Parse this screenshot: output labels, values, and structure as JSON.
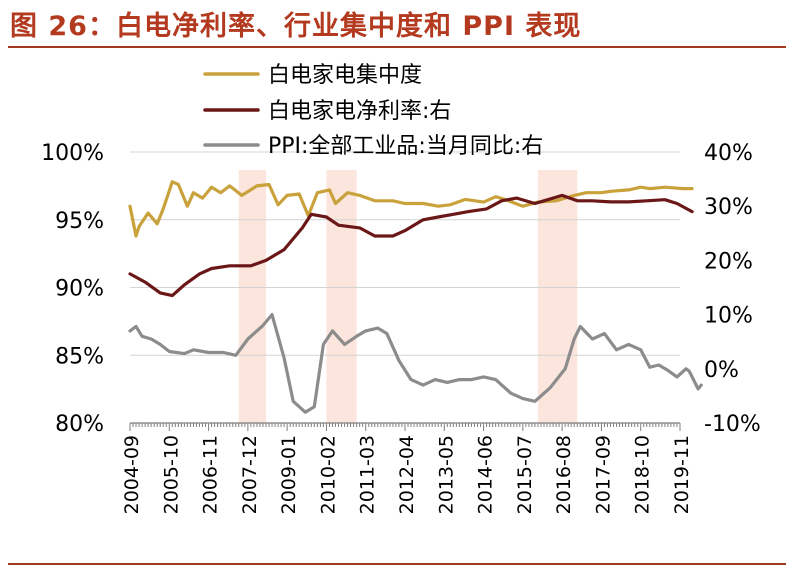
{
  "figure": {
    "title": "图 26：白电净利率、行业集中度和 PPI 表现"
  },
  "colors": {
    "title": "#b3391f",
    "rule": "#a23a1e",
    "shade": "#fbe5dc",
    "grid": "#d4d4d4",
    "axis": "#7f7f7f"
  },
  "chart_data": {
    "type": "line",
    "title": "",
    "xlabel": "",
    "ylabel": "",
    "x_tick_labels": [
      "2004-09",
      "2005-10",
      "2006-11",
      "2007-12",
      "2009-01",
      "2010-02",
      "2011-03",
      "2012-04",
      "2013-05",
      "2014-06",
      "2015-07",
      "2016-08",
      "2017-09",
      "2018-10",
      "2019-11"
    ],
    "y_left": {
      "range": [
        80,
        100
      ],
      "tick_labels": [
        "80%",
        "85%",
        "90%",
        "95%",
        "100%"
      ]
    },
    "y_right": {
      "range": [
        -10,
        40
      ],
      "tick_labels": [
        "-10%",
        "0%",
        "10%",
        "20%",
        "30%",
        "40%"
      ]
    },
    "grid": "horizontal",
    "legend": "top-center",
    "shaded_periods": [
      {
        "from": "2007-09",
        "to": "2008-06"
      },
      {
        "from": "2010-02",
        "to": "2010-12"
      },
      {
        "from": "2015-12",
        "to": "2017-01"
      }
    ],
    "series": [
      {
        "name": "白电家电集中度",
        "axis": "left",
        "color": "#c9a23c",
        "points": [
          [
            "2004-09",
            96.0
          ],
          [
            "2004-11",
            93.8
          ],
          [
            "2004-12",
            94.5
          ],
          [
            "2005-03",
            95.5
          ],
          [
            "2005-06",
            94.7
          ],
          [
            "2005-08",
            95.8
          ],
          [
            "2005-11",
            97.8
          ],
          [
            "2006-01",
            97.6
          ],
          [
            "2006-04",
            96.0
          ],
          [
            "2006-06",
            97.0
          ],
          [
            "2006-09",
            96.6
          ],
          [
            "2006-12",
            97.4
          ],
          [
            "2007-03",
            97.0
          ],
          [
            "2007-06",
            97.5
          ],
          [
            "2007-10",
            96.8
          ],
          [
            "2008-03",
            97.5
          ],
          [
            "2008-07",
            97.6
          ],
          [
            "2008-10",
            96.1
          ],
          [
            "2009-01",
            96.8
          ],
          [
            "2009-05",
            96.9
          ],
          [
            "2009-08",
            95.3
          ],
          [
            "2009-11",
            97.0
          ],
          [
            "2010-03",
            97.2
          ],
          [
            "2010-05",
            96.2
          ],
          [
            "2010-09",
            97.0
          ],
          [
            "2011-01",
            96.8
          ],
          [
            "2011-06",
            96.4
          ],
          [
            "2011-12",
            96.4
          ],
          [
            "2012-04",
            96.2
          ],
          [
            "2012-10",
            96.2
          ],
          [
            "2013-03",
            96.0
          ],
          [
            "2013-07",
            96.1
          ],
          [
            "2013-12",
            96.5
          ],
          [
            "2014-06",
            96.3
          ],
          [
            "2014-10",
            96.7
          ],
          [
            "2015-01",
            96.5
          ],
          [
            "2015-07",
            96.0
          ],
          [
            "2015-12",
            96.3
          ],
          [
            "2016-06",
            96.4
          ],
          [
            "2016-12",
            96.8
          ],
          [
            "2017-04",
            97.0
          ],
          [
            "2017-09",
            97.0
          ],
          [
            "2017-12",
            97.1
          ],
          [
            "2018-06",
            97.2
          ],
          [
            "2018-10",
            97.4
          ],
          [
            "2019-01",
            97.3
          ],
          [
            "2019-06",
            97.4
          ],
          [
            "2019-12",
            97.3
          ],
          [
            "2020-03",
            97.3
          ]
        ]
      },
      {
        "name": "白电家电净利率:右",
        "axis": "right",
        "color": "#6b1717",
        "points": [
          [
            "2004-09",
            17.5
          ],
          [
            "2005-02",
            16.0
          ],
          [
            "2005-07",
            14.0
          ],
          [
            "2005-11",
            13.5
          ],
          [
            "2006-03",
            15.5
          ],
          [
            "2006-08",
            17.5
          ],
          [
            "2006-12",
            18.5
          ],
          [
            "2007-06",
            19.0
          ],
          [
            "2008-01",
            19.0
          ],
          [
            "2008-06",
            20.0
          ],
          [
            "2008-12",
            22.0
          ],
          [
            "2009-06",
            26.0
          ],
          [
            "2009-09",
            28.5
          ],
          [
            "2010-02",
            28.0
          ],
          [
            "2010-06",
            26.5
          ],
          [
            "2011-01",
            26.0
          ],
          [
            "2011-06",
            24.5
          ],
          [
            "2011-12",
            24.5
          ],
          [
            "2012-04",
            25.5
          ],
          [
            "2012-10",
            27.5
          ],
          [
            "2013-03",
            28.0
          ],
          [
            "2013-08",
            28.5
          ],
          [
            "2014-01",
            29.0
          ],
          [
            "2014-07",
            29.5
          ],
          [
            "2014-12",
            31.0
          ],
          [
            "2015-05",
            31.5
          ],
          [
            "2015-11",
            30.5
          ],
          [
            "2016-02",
            31.0
          ],
          [
            "2016-08",
            32.0
          ],
          [
            "2017-01",
            31.0
          ],
          [
            "2017-06",
            31.0
          ],
          [
            "2017-12",
            30.8
          ],
          [
            "2018-06",
            30.8
          ],
          [
            "2018-12",
            31.0
          ],
          [
            "2019-06",
            31.2
          ],
          [
            "2019-10",
            30.5
          ],
          [
            "2020-03",
            29.0
          ]
        ]
      },
      {
        "name": "PPI:全部工业品:当月同比:右",
        "axis": "right",
        "color": "#8c8c8c",
        "points": [
          [
            "2004-09",
            7.0
          ],
          [
            "2004-11",
            7.8
          ],
          [
            "2005-01",
            6.0
          ],
          [
            "2005-04",
            5.5
          ],
          [
            "2005-07",
            4.5
          ],
          [
            "2005-10",
            3.2
          ],
          [
            "2006-03",
            2.8
          ],
          [
            "2006-06",
            3.5
          ],
          [
            "2006-11",
            3.0
          ],
          [
            "2007-04",
            3.0
          ],
          [
            "2007-08",
            2.5
          ],
          [
            "2007-12",
            5.5
          ],
          [
            "2008-05",
            8.0
          ],
          [
            "2008-08",
            10.0
          ],
          [
            "2008-12",
            2.0
          ],
          [
            "2009-03",
            -6.0
          ],
          [
            "2009-07",
            -8.0
          ],
          [
            "2009-10",
            -7.0
          ],
          [
            "2010-01",
            4.5
          ],
          [
            "2010-04",
            7.0
          ],
          [
            "2010-08",
            4.5
          ],
          [
            "2010-12",
            6.0
          ],
          [
            "2011-03",
            7.0
          ],
          [
            "2011-07",
            7.5
          ],
          [
            "2011-10",
            6.5
          ],
          [
            "2012-02",
            1.5
          ],
          [
            "2012-06",
            -2.0
          ],
          [
            "2012-10",
            -3.0
          ],
          [
            "2013-02",
            -2.0
          ],
          [
            "2013-06",
            -2.5
          ],
          [
            "2013-10",
            -2.0
          ],
          [
            "2014-02",
            -2.0
          ],
          [
            "2014-06",
            -1.5
          ],
          [
            "2014-10",
            -2.0
          ],
          [
            "2015-03",
            -4.5
          ],
          [
            "2015-07",
            -5.5
          ],
          [
            "2015-11",
            -6.0
          ],
          [
            "2016-04",
            -3.5
          ],
          [
            "2016-09",
            0.0
          ],
          [
            "2016-12",
            5.5
          ],
          [
            "2017-02",
            7.8
          ],
          [
            "2017-06",
            5.5
          ],
          [
            "2017-10",
            6.5
          ],
          [
            "2018-02",
            3.5
          ],
          [
            "2018-06",
            4.5
          ],
          [
            "2018-10",
            3.5
          ],
          [
            "2019-01",
            0.3
          ],
          [
            "2019-04",
            0.7
          ],
          [
            "2019-07",
            -0.3
          ],
          [
            "2019-10",
            -1.5
          ],
          [
            "2019-12",
            -0.5
          ],
          [
            "2020-01",
            0.0
          ],
          [
            "2020-02",
            -0.4
          ],
          [
            "2020-03",
            -1.5
          ],
          [
            "2020-05",
            -3.7
          ],
          [
            "2020-06",
            -3.0
          ]
        ]
      }
    ]
  }
}
